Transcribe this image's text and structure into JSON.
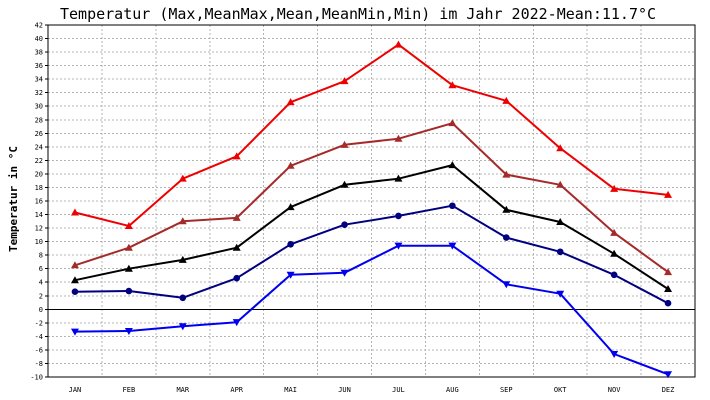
{
  "chart_data": {
    "type": "line",
    "title": "Temperatur (Max,MeanMax,Mean,MeanMin,Min) im Jahr 2022-Mean:11.7°C",
    "xlabel": "",
    "ylabel": "Temperatur in °C",
    "ylim": [
      -10,
      42
    ],
    "ytick_step": 2,
    "grid": true,
    "categories": [
      "JAN",
      "FEB",
      "MAR",
      "APR",
      "MAI",
      "JUN",
      "JUL",
      "AUG",
      "SEP",
      "OKT",
      "NOV",
      "DEZ"
    ],
    "series": [
      {
        "color": "#ee0000",
        "marker": "triangle-up",
        "values": [
          14.3,
          12.3,
          19.3,
          22.6,
          30.6,
          33.7,
          39.1,
          33.1,
          30.8,
          23.8,
          17.8,
          16.9
        ]
      },
      {
        "color": "#a52a2a",
        "marker": "triangle-up",
        "values": [
          6.5,
          9.1,
          13.0,
          13.5,
          21.2,
          24.3,
          25.2,
          27.5,
          19.9,
          18.4,
          11.3,
          5.5
        ]
      },
      {
        "color": "#000000",
        "marker": "triangle-up",
        "values": [
          4.3,
          6.0,
          7.3,
          9.1,
          15.1,
          18.4,
          19.3,
          21.3,
          14.7,
          12.9,
          8.2,
          3.0
        ]
      },
      {
        "color": "#000080",
        "marker": "circle",
        "values": [
          2.6,
          2.7,
          1.7,
          4.6,
          9.6,
          12.5,
          13.8,
          15.3,
          10.6,
          8.5,
          5.1,
          0.9
        ]
      },
      {
        "color": "#0000ee",
        "marker": "triangle-down",
        "values": [
          -3.3,
          -3.2,
          -2.5,
          -1.9,
          5.1,
          5.4,
          9.4,
          9.4,
          3.7,
          2.3,
          -6.6,
          -9.6
        ]
      }
    ]
  }
}
